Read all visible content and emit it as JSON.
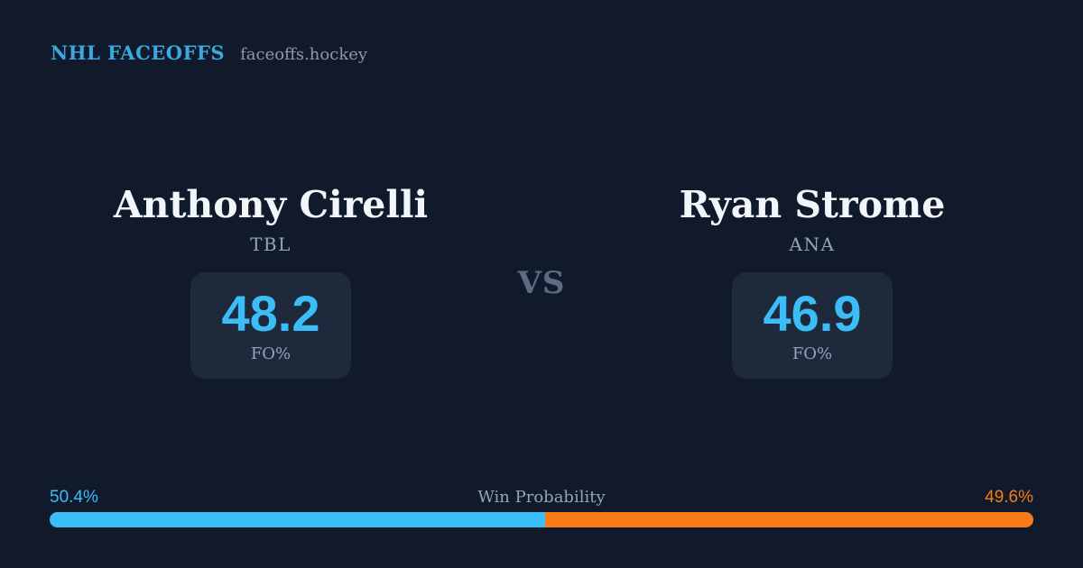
{
  "header": {
    "brand": "NHL FACEOFFS",
    "site": "faceoffs.hockey"
  },
  "matchup": {
    "vs_label": "VS",
    "players": [
      {
        "name": "Anthony Cirelli",
        "team": "TBL",
        "stat_value": "48.2",
        "stat_label": "FO%"
      },
      {
        "name": "Ryan Strome",
        "team": "ANA",
        "stat_value": "46.9",
        "stat_label": "FO%"
      }
    ]
  },
  "win_probability": {
    "label": "Win Probability",
    "left_pct": "50.4%",
    "right_pct": "49.6%",
    "left_value": 50.4,
    "right_value": 49.6
  },
  "colors": {
    "background": "#111a2b",
    "card_background": "#1e2a3c",
    "brand_blue": "#3aa9e0",
    "accent_blue": "#3bbdf8",
    "accent_orange": "#f97b16",
    "primary_text": "#f2f5fa",
    "secondary_text": "#94a3b8",
    "vs_text": "#5c6b84"
  }
}
